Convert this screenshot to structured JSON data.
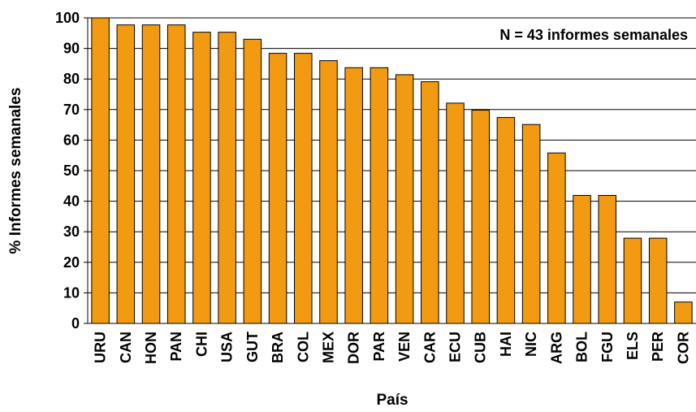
{
  "chart_data": {
    "type": "bar",
    "title": "",
    "annotation": "N = 43 informes semanales",
    "xlabel": "País",
    "ylabel": "% Informes semanales",
    "ylim": [
      0,
      100
    ],
    "yticks": [
      0,
      10,
      20,
      30,
      40,
      50,
      60,
      70,
      80,
      90,
      100
    ],
    "grid": true,
    "bar_color": "#F29B12",
    "bar_stroke": "#000000",
    "categories": [
      "URU",
      "CAN",
      "HON",
      "PAN",
      "CHI",
      "USA",
      "GUT",
      "BRA",
      "COL",
      "MEX",
      "DOR",
      "PAR",
      "VEN",
      "CAR",
      "ECU",
      "CUB",
      "HAI",
      "NIC",
      "ARG",
      "BOL",
      "FGU",
      "ELS",
      "PER",
      "COR"
    ],
    "values": [
      100,
      97.7,
      97.7,
      97.7,
      95.3,
      95.3,
      93.0,
      88.4,
      88.4,
      86.0,
      83.7,
      83.7,
      81.4,
      79.1,
      72.1,
      69.8,
      67.4,
      65.1,
      55.8,
      41.9,
      41.9,
      27.9,
      27.9,
      7.0
    ]
  }
}
